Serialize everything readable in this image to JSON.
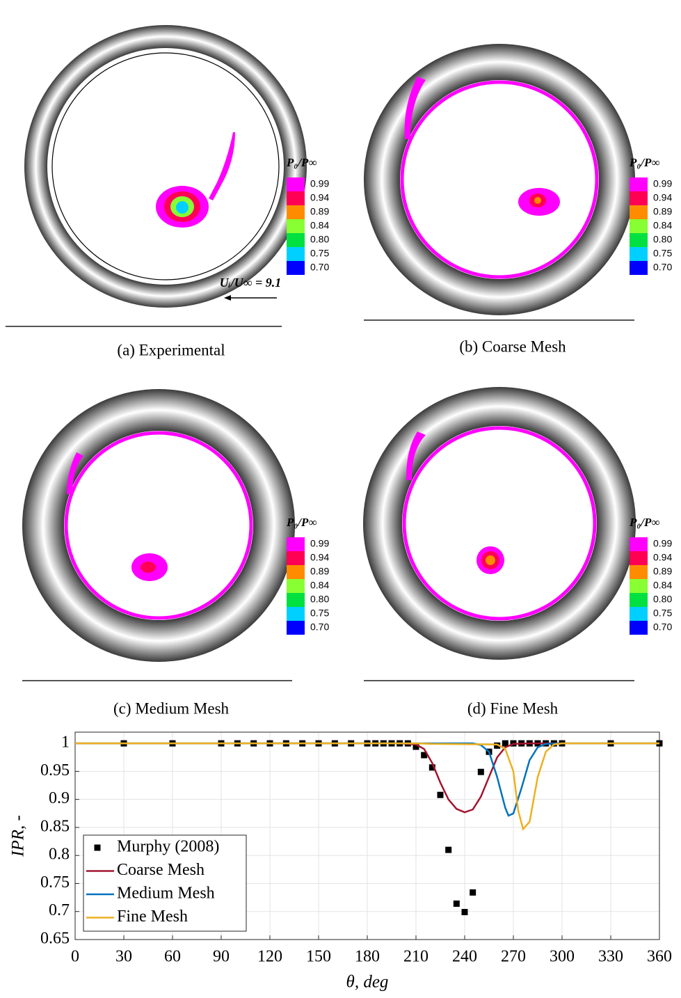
{
  "panels": [
    {
      "caption": "(a) Experimental",
      "annotation": "Uᵢ/U∞ = 9.1",
      "legend": {
        "title": "P₀/P∞",
        "levels": [
          {
            "label": "0.99",
            "color": "#ff00ff"
          },
          {
            "label": "0.94",
            "color": "#ff0055"
          },
          {
            "label": "0.89",
            "color": "#ff8c00"
          },
          {
            "label": "0.84",
            "color": "#88ff33"
          },
          {
            "label": "0.80",
            "color": "#00e040"
          },
          {
            "label": "0.75",
            "color": "#00d0ff"
          },
          {
            "label": "0.70",
            "color": "#0000ff"
          }
        ]
      }
    },
    {
      "caption": "(b) Coarse Mesh",
      "legend": {
        "title": "P₀/P∞",
        "levels": [
          {
            "label": "0.99",
            "color": "#ff00ff"
          },
          {
            "label": "0.94",
            "color": "#ff0055"
          },
          {
            "label": "0.89",
            "color": "#ff8c00"
          },
          {
            "label": "0.84",
            "color": "#88ff33"
          },
          {
            "label": "0.80",
            "color": "#00e040"
          },
          {
            "label": "0.75",
            "color": "#00d0ff"
          },
          {
            "label": "0.70",
            "color": "#0000ff"
          }
        ]
      }
    },
    {
      "caption": "(c) Medium Mesh",
      "legend": {
        "title": "P₀/P∞",
        "levels": [
          {
            "label": "0.99",
            "color": "#ff00ff"
          },
          {
            "label": "0.94",
            "color": "#ff0055"
          },
          {
            "label": "0.89",
            "color": "#ff8c00"
          },
          {
            "label": "0.84",
            "color": "#88ff33"
          },
          {
            "label": "0.80",
            "color": "#00e040"
          },
          {
            "label": "0.75",
            "color": "#00d0ff"
          },
          {
            "label": "0.70",
            "color": "#0000ff"
          }
        ]
      }
    },
    {
      "caption": "(d) Fine Mesh",
      "legend": {
        "title": "P₀/P∞",
        "levels": [
          {
            "label": "0.99",
            "color": "#ff00ff"
          },
          {
            "label": "0.94",
            "color": "#ff0055"
          },
          {
            "label": "0.89",
            "color": "#ff8c00"
          },
          {
            "label": "0.84",
            "color": "#88ff33"
          },
          {
            "label": "0.80",
            "color": "#00e040"
          },
          {
            "label": "0.75",
            "color": "#00d0ff"
          },
          {
            "label": "0.70",
            "color": "#0000ff"
          }
        ]
      }
    }
  ],
  "chart_data": {
    "type": "line",
    "xlabel": "θ, deg",
    "ylabel": "IPR, -",
    "xlim": [
      0,
      360
    ],
    "xticks": [
      0,
      30,
      60,
      90,
      120,
      150,
      180,
      210,
      240,
      270,
      300,
      330,
      360
    ],
    "ylim": [
      0.65,
      1.02
    ],
    "yticks": [
      0.65,
      0.7,
      0.75,
      0.8,
      0.85,
      0.9,
      0.95,
      1
    ],
    "grid": true,
    "legend": "lower left",
    "series": [
      {
        "name": "Murphy (2008)",
        "type": "scatter",
        "color": "#000000",
        "x": [
          30,
          60,
          90,
          100,
          110,
          120,
          130,
          140,
          150,
          160,
          170,
          180,
          185,
          190,
          195,
          200,
          205,
          210,
          215,
          220,
          225,
          230,
          235,
          240,
          245,
          250,
          255,
          260,
          265,
          270,
          275,
          280,
          285,
          290,
          295,
          300,
          330,
          360
        ],
        "values": [
          1,
          1,
          1,
          1,
          1,
          1,
          1,
          1,
          1,
          1,
          1,
          1,
          1,
          1,
          1,
          1,
          1,
          0.994,
          0.979,
          0.957,
          0.908,
          0.81,
          0.714,
          0.699,
          0.734,
          0.949,
          0.985,
          0.996,
          1,
          1,
          1,
          1,
          1,
          1,
          1,
          1,
          1,
          1
        ]
      },
      {
        "name": "Coarse Mesh",
        "color": "#a2142f",
        "x": [
          0,
          200,
          210,
          215,
          220,
          225,
          230,
          235,
          240,
          245,
          250,
          255,
          260,
          265,
          270,
          280,
          360
        ],
        "values": [
          1,
          1,
          0.998,
          0.99,
          0.965,
          0.93,
          0.9,
          0.883,
          0.877,
          0.882,
          0.905,
          0.94,
          0.975,
          0.993,
          0.999,
          1,
          1
        ]
      },
      {
        "name": "Medium Mesh",
        "color": "#0072bd",
        "x": [
          0,
          245,
          250,
          255,
          260,
          265,
          267,
          270,
          275,
          280,
          285,
          290,
          300,
          360
        ],
        "values": [
          1,
          1,
          0.997,
          0.985,
          0.94,
          0.885,
          0.871,
          0.875,
          0.92,
          0.97,
          0.993,
          0.999,
          1,
          1
        ]
      },
      {
        "name": "Fine Mesh",
        "color": "#edb120",
        "x": [
          0,
          210,
          220,
          260,
          265,
          270,
          273,
          276,
          280,
          285,
          290,
          295,
          300,
          360
        ],
        "values": [
          1,
          1,
          0.999,
          0.998,
          0.99,
          0.95,
          0.88,
          0.847,
          0.86,
          0.94,
          0.985,
          0.998,
          1,
          1
        ]
      }
    ]
  }
}
